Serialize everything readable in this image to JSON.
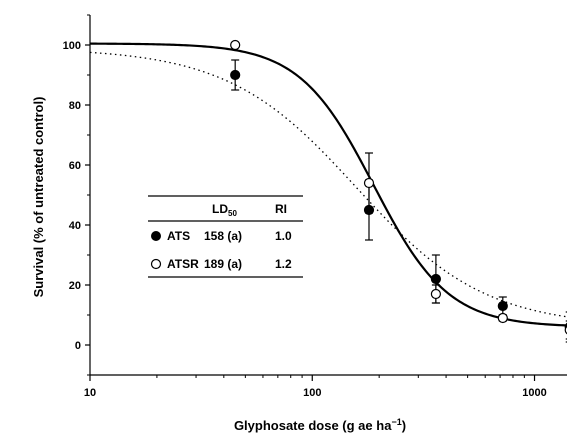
{
  "chart_data": {
    "type": "scatter",
    "x_scale": "log",
    "xlabel": "Glyphosate dose (g ae ha",
    "xlabel_sup": "−1",
    "xlabel_close": ")",
    "ylabel": "Survival (% of untreated control)",
    "xlim": [
      10,
      1400
    ],
    "ylim": [
      -10,
      110
    ],
    "x_ticks": [
      10,
      100,
      1000
    ],
    "x_tick_labels": [
      "10",
      "100",
      "1000"
    ],
    "y_ticks": [
      0,
      20,
      40,
      60,
      80,
      100
    ],
    "y_tick_labels": [
      "0",
      "20",
      "40",
      "60",
      "80",
      "100"
    ],
    "series": [
      {
        "name": "ATS",
        "marker": "filled-circle",
        "fit_line": "dotted",
        "points": [
          {
            "x": 45,
            "y": 90,
            "err": 5
          },
          {
            "x": 180,
            "y": 45,
            "err": 10
          },
          {
            "x": 360,
            "y": 22,
            "err": 8
          },
          {
            "x": 720,
            "y": 13,
            "err": 3
          },
          {
            "x": 1440,
            "y": 6,
            "err": 5
          }
        ],
        "fit": {
          "top": 99,
          "bottom": 6,
          "ld50": 158,
          "slope": 1.5
        }
      },
      {
        "name": "ATSR",
        "marker": "open-circle",
        "fit_line": "solid",
        "points": [
          {
            "x": 45,
            "y": 100,
            "err": 0
          },
          {
            "x": 180,
            "y": 54,
            "err": 10
          },
          {
            "x": 360,
            "y": 17,
            "err": 3
          },
          {
            "x": 720,
            "y": 9,
            "err": 1
          },
          {
            "x": 1440,
            "y": 5,
            "err": 3
          }
        ],
        "fit": {
          "top": 100.5,
          "bottom": 6,
          "ld50": 189,
          "slope": 2.6
        }
      }
    ],
    "inset_table": {
      "col_ld50": "LD",
      "col_ld50_sub": "50",
      "col_ri": "RI",
      "rows": [
        {
          "name": "ATS",
          "ld50": "158 (a)",
          "ri": "1.0"
        },
        {
          "name": "ATSR",
          "ld50": "189 (a)",
          "ri": "1.2"
        }
      ]
    }
  }
}
